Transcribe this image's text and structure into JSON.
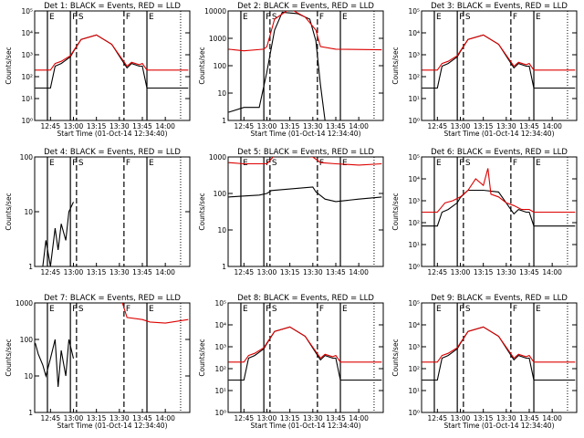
{
  "figure": {
    "layout": "3x3 grid",
    "colors": {
      "events": "#000000",
      "lld": "#dd0000"
    }
  },
  "chart_data": [
    {
      "type": "line",
      "title": "Det 1: BLACK = Events, RED = LLD",
      "xlabel": "Start Time (01-Oct-14 12:34:40)",
      "ylabel": "Counts/sec",
      "yscale": "log",
      "ylim": [
        1,
        100000
      ],
      "yticks": [
        "10⁰",
        "10¹",
        "10²",
        "10³",
        "10⁴",
        "10⁵"
      ],
      "xticks": [
        "12:45",
        "13:00",
        "13:15",
        "13:30",
        "13:45",
        "14:00"
      ],
      "markers": [
        "E",
        "F",
        "S",
        "F",
        "E"
      ],
      "series": [
        {
          "name": "Events",
          "x": [
            "12:35",
            "12:45",
            "12:48",
            "12:52",
            "12:58",
            "13:00",
            "13:05",
            "13:15",
            "13:25",
            "13:35",
            "13:38",
            "13:43",
            "13:45",
            "13:48",
            "14:00",
            "14:15"
          ],
          "values": [
            30,
            30,
            300,
            400,
            800,
            1400,
            5000,
            8000,
            3000,
            250,
            400,
            300,
            300,
            30,
            30,
            30
          ]
        },
        {
          "name": "LLD",
          "x": [
            "12:35",
            "12:45",
            "12:48",
            "12:52",
            "12:58",
            "13:00",
            "13:05",
            "13:15",
            "13:25",
            "13:35",
            "13:38",
            "13:43",
            "13:45",
            "13:48",
            "14:00",
            "14:15"
          ],
          "values": [
            200,
            200,
            400,
            500,
            900,
            1500,
            5000,
            8000,
            3000,
            300,
            450,
            350,
            400,
            200,
            200,
            200
          ]
        }
      ]
    },
    {
      "type": "line",
      "title": "Det 2: BLACK = Events, RED = LLD",
      "xlabel": "Start Time (01-Oct-14 12:34:40)",
      "ylabel": "Counts/sec",
      "yscale": "log",
      "ylim": [
        1,
        10000
      ],
      "yticks": [
        "1",
        "10",
        "100",
        "1000",
        "10000"
      ],
      "xticks": [
        "12:45",
        "13:00",
        "13:15",
        "13:30",
        "13:45",
        "14:00"
      ],
      "markers": [
        "E",
        "F",
        "S",
        "F",
        "E"
      ],
      "series": [
        {
          "name": "Events",
          "x": [
            "12:35",
            "12:45",
            "12:55",
            "13:00",
            "13:05",
            "13:10",
            "13:20",
            "13:28",
            "13:32",
            "13:35",
            "13:38"
          ],
          "values": [
            2,
            3,
            3,
            60,
            2000,
            9000,
            8000,
            5000,
            800,
            20,
            1
          ]
        },
        {
          "name": "LLD",
          "x": [
            "12:35",
            "12:45",
            "12:58",
            "13:00",
            "13:05",
            "13:15",
            "13:25",
            "13:32",
            "13:35",
            "13:45",
            "14:15"
          ],
          "values": [
            400,
            350,
            400,
            500,
            5000,
            12000,
            6000,
            2000,
            500,
            400,
            380
          ]
        }
      ]
    },
    {
      "type": "line",
      "title": "Det 3: BLACK = Events, RED = LLD",
      "xlabel": "Start Time (01-Oct-14 12:34:40)",
      "ylabel": "Counts/sec",
      "yscale": "log",
      "ylim": [
        1,
        100000
      ],
      "yticks": [
        "10⁰",
        "10¹",
        "10²",
        "10³",
        "10⁴",
        "10⁵"
      ],
      "xticks": [
        "12:45",
        "13:00",
        "13:15",
        "13:30",
        "13:45",
        "14:00"
      ],
      "markers": [
        "E",
        "F",
        "S",
        "F",
        "E"
      ],
      "series": [
        {
          "name": "Events",
          "x": [
            "12:35",
            "12:45",
            "12:48",
            "12:52",
            "12:58",
            "13:00",
            "13:05",
            "13:15",
            "13:25",
            "13:35",
            "13:38",
            "13:43",
            "13:45",
            "13:48",
            "14:00",
            "14:15"
          ],
          "values": [
            30,
            30,
            300,
            400,
            800,
            1400,
            5000,
            8000,
            3000,
            250,
            400,
            300,
            300,
            30,
            30,
            30
          ]
        },
        {
          "name": "LLD",
          "x": [
            "12:35",
            "12:45",
            "12:48",
            "12:52",
            "12:58",
            "13:00",
            "13:05",
            "13:15",
            "13:25",
            "13:35",
            "13:38",
            "13:43",
            "13:45",
            "13:48",
            "14:00",
            "14:15"
          ],
          "values": [
            200,
            200,
            400,
            500,
            900,
            1500,
            5000,
            8000,
            3000,
            300,
            450,
            350,
            400,
            200,
            200,
            200
          ]
        }
      ]
    },
    {
      "type": "line",
      "title": "Det 4: BLACK = Events, RED = LLD",
      "xlabel": "",
      "ylabel": "Counts/sec",
      "yscale": "log",
      "ylim": [
        1,
        100
      ],
      "yticks": [
        "1",
        "10",
        "100"
      ],
      "xticks": [
        "12:45",
        "13:00",
        "13:15",
        "13:30",
        "13:45",
        "14:00"
      ],
      "markers": [
        "E",
        "F",
        "S",
        "F",
        "E"
      ],
      "series": [
        {
          "name": "Events",
          "x": [
            "12:35",
            "12:40",
            "12:42",
            "12:45",
            "12:48",
            "12:50",
            "12:52",
            "12:55",
            "12:57",
            "13:00"
          ],
          "values": [
            1,
            1,
            3,
            1,
            5,
            2,
            6,
            3,
            10,
            15
          ]
        },
        {
          "name": "LLD",
          "x": [],
          "values": []
        }
      ]
    },
    {
      "type": "line",
      "title": "Det 5: BLACK = Events, RED = LLD",
      "xlabel": "",
      "ylabel": "Counts/sec",
      "yscale": "log",
      "ylim": [
        1,
        1000
      ],
      "yticks": [
        "1",
        "10",
        "100",
        "1000"
      ],
      "xticks": [
        "12:45",
        "13:00",
        "13:15",
        "13:30",
        "13:45",
        "14:00"
      ],
      "markers": [
        "E",
        "F",
        "S",
        "F",
        "E"
      ],
      "series": [
        {
          "name": "Events",
          "x": [
            "12:35",
            "12:45",
            "12:55",
            "13:00",
            "13:03",
            "13:30",
            "13:32",
            "13:38",
            "13:45",
            "14:00",
            "14:15"
          ],
          "values": [
            80,
            85,
            90,
            100,
            120,
            150,
            110,
            70,
            60,
            70,
            80
          ]
        },
        {
          "name": "LLD",
          "x": [
            "12:35",
            "12:45",
            "13:00",
            "13:05",
            "13:20",
            "13:30",
            "13:35",
            "13:45",
            "14:00",
            "14:15"
          ],
          "values": [
            700,
            650,
            650,
            1100,
            1100,
            1000,
            700,
            650,
            600,
            650
          ]
        }
      ]
    },
    {
      "type": "line",
      "title": "Det 6: BLACK = Events, RED = LLD",
      "xlabel": "",
      "ylabel": "Counts/sec",
      "yscale": "log",
      "ylim": [
        1,
        100000
      ],
      "yticks": [
        "10⁰",
        "10¹",
        "10²",
        "10³",
        "10⁴",
        "10⁵"
      ],
      "xticks": [
        "12:45",
        "13:00",
        "13:15",
        "13:30",
        "13:45",
        "14:00"
      ],
      "markers": [
        "E",
        "F",
        "S",
        "F",
        "E"
      ],
      "series": [
        {
          "name": "Events",
          "x": [
            "12:35",
            "12:45",
            "12:48",
            "12:52",
            "12:58",
            "13:00",
            "13:05",
            "13:15",
            "13:25",
            "13:35",
            "13:38",
            "13:43",
            "13:45",
            "13:48",
            "14:00",
            "14:15"
          ],
          "values": [
            70,
            70,
            300,
            400,
            800,
            1400,
            3000,
            3000,
            2500,
            250,
            400,
            300,
            300,
            70,
            70,
            70
          ]
        },
        {
          "name": "LLD",
          "x": [
            "12:35",
            "12:45",
            "12:50",
            "12:55",
            "13:00",
            "13:05",
            "13:10",
            "13:15",
            "13:18",
            "13:20",
            "13:25",
            "13:30",
            "13:35",
            "13:40",
            "13:45",
            "13:48",
            "14:00",
            "14:15"
          ],
          "values": [
            300,
            300,
            800,
            1000,
            1500,
            3000,
            10000,
            5000,
            30000,
            2000,
            1500,
            800,
            600,
            400,
            400,
            300,
            300,
            300
          ]
        }
      ]
    },
    {
      "type": "line",
      "title": "Det 7: BLACK = Events, RED = LLD",
      "xlabel": "Start Time (01-Oct-14 12:34:40)",
      "ylabel": "Counts/sec",
      "yscale": "log",
      "ylim": [
        1,
        1000
      ],
      "yticks": [
        "1",
        "10",
        "100",
        "1000"
      ],
      "xticks": [
        "12:45",
        "13:00",
        "13:15",
        "13:30",
        "13:45",
        "14:00"
      ],
      "markers": [
        "E",
        "F",
        "S",
        "F",
        "E"
      ],
      "series": [
        {
          "name": "Events",
          "x": [
            "12:35",
            "12:37",
            "12:40",
            "12:42",
            "12:45",
            "12:48",
            "12:50",
            "12:52",
            "12:55",
            "12:57",
            "13:00"
          ],
          "values": [
            80,
            40,
            20,
            10,
            30,
            100,
            5,
            50,
            10,
            100,
            30
          ]
        },
        {
          "name": "LLD",
          "x": [
            "13:32",
            "13:35",
            "13:45",
            "13:50",
            "14:00",
            "14:15"
          ],
          "values": [
            1000,
            400,
            350,
            300,
            280,
            350
          ]
        }
      ]
    },
    {
      "type": "line",
      "title": "Det 8: BLACK = Events, RED = LLD",
      "xlabel": "Start Time (01-Oct-14 12:34:40)",
      "ylabel": "Counts/sec",
      "yscale": "log",
      "ylim": [
        1,
        100000
      ],
      "yticks": [
        "10⁰",
        "10¹",
        "10²",
        "10³",
        "10⁴",
        "10⁵"
      ],
      "xticks": [
        "12:45",
        "13:00",
        "13:15",
        "13:30",
        "13:45",
        "14:00"
      ],
      "markers": [
        "E",
        "F",
        "S",
        "F",
        "E"
      ],
      "series": [
        {
          "name": "Events",
          "x": [
            "12:35",
            "12:45",
            "12:48",
            "12:52",
            "12:58",
            "13:00",
            "13:05",
            "13:15",
            "13:25",
            "13:35",
            "13:38",
            "13:43",
            "13:45",
            "13:48",
            "14:00",
            "14:15"
          ],
          "values": [
            30,
            30,
            300,
            400,
            800,
            1400,
            5000,
            8000,
            3000,
            250,
            400,
            300,
            300,
            30,
            30,
            30
          ]
        },
        {
          "name": "LLD",
          "x": [
            "12:35",
            "12:45",
            "12:48",
            "12:52",
            "12:58",
            "13:00",
            "13:05",
            "13:15",
            "13:25",
            "13:35",
            "13:38",
            "13:43",
            "13:45",
            "13:48",
            "14:00",
            "14:15"
          ],
          "values": [
            200,
            200,
            400,
            500,
            900,
            1500,
            5000,
            8000,
            3000,
            300,
            450,
            350,
            400,
            200,
            200,
            200
          ]
        }
      ]
    },
    {
      "type": "line",
      "title": "Det 9: BLACK = Events, RED = LLD",
      "xlabel": "Start Time (01-Oct-14 12:34:40)",
      "ylabel": "Counts/sec",
      "yscale": "log",
      "ylim": [
        1,
        100000
      ],
      "yticks": [
        "10⁰",
        "10¹",
        "10²",
        "10³",
        "10⁴",
        "10⁵"
      ],
      "xticks": [
        "12:45",
        "13:00",
        "13:15",
        "13:30",
        "13:45",
        "14:00"
      ],
      "markers": [
        "E",
        "F",
        "S",
        "F",
        "E"
      ],
      "series": [
        {
          "name": "Events",
          "x": [
            "12:35",
            "12:45",
            "12:48",
            "12:52",
            "12:58",
            "13:00",
            "13:05",
            "13:15",
            "13:25",
            "13:35",
            "13:38",
            "13:43",
            "13:45",
            "13:48",
            "14:00",
            "14:15"
          ],
          "values": [
            30,
            30,
            300,
            400,
            800,
            1400,
            5000,
            8000,
            3000,
            250,
            400,
            300,
            300,
            30,
            30,
            30
          ]
        },
        {
          "name": "LLD",
          "x": [
            "12:35",
            "12:45",
            "12:48",
            "12:52",
            "12:58",
            "13:00",
            "13:05",
            "13:15",
            "13:25",
            "13:35",
            "13:38",
            "13:43",
            "13:45",
            "13:48",
            "14:00",
            "14:15"
          ],
          "values": [
            200,
            200,
            400,
            500,
            900,
            1500,
            5000,
            8000,
            3000,
            300,
            450,
            350,
            400,
            200,
            200,
            200
          ]
        }
      ]
    }
  ]
}
